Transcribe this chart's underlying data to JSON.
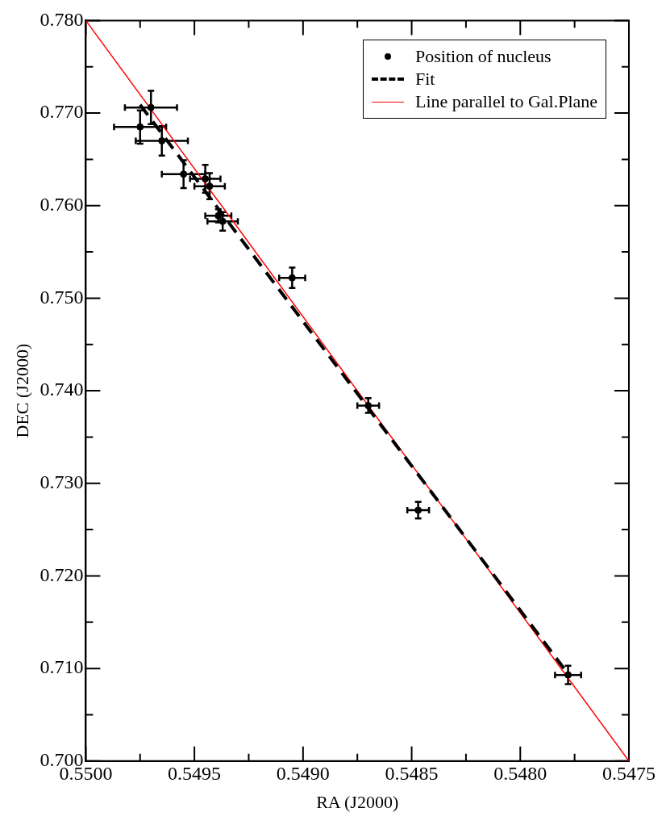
{
  "chart_data": {
    "type": "scatter",
    "xlabel": "RA (J2000)",
    "ylabel": "DEC (J2000)",
    "xlim": [
      0.55,
      0.5475
    ],
    "ylim": [
      0.7,
      0.78
    ],
    "xticks": [
      {
        "value": 0.55,
        "label": "0.5500"
      },
      {
        "value": 0.54975,
        "label": null
      },
      {
        "value": 0.5495,
        "label": "0.5495"
      },
      {
        "value": 0.54925,
        "label": null
      },
      {
        "value": 0.549,
        "label": "0.5490"
      },
      {
        "value": 0.54875,
        "label": null
      },
      {
        "value": 0.5485,
        "label": "0.5485"
      },
      {
        "value": 0.54825,
        "label": null
      },
      {
        "value": 0.548,
        "label": "0.5480"
      },
      {
        "value": 0.54775,
        "label": null
      },
      {
        "value": 0.5475,
        "label": "0.5475"
      }
    ],
    "yticks": [
      {
        "value": 0.7,
        "label": "0.700"
      },
      {
        "value": 0.705,
        "label": null
      },
      {
        "value": 0.71,
        "label": "0.710"
      },
      {
        "value": 0.715,
        "label": null
      },
      {
        "value": 0.72,
        "label": "0.720"
      },
      {
        "value": 0.725,
        "label": null
      },
      {
        "value": 0.73,
        "label": "0.730"
      },
      {
        "value": 0.735,
        "label": null
      },
      {
        "value": 0.74,
        "label": "0.740"
      },
      {
        "value": 0.745,
        "label": null
      },
      {
        "value": 0.75,
        "label": "0.750"
      },
      {
        "value": 0.755,
        "label": null
      },
      {
        "value": 0.76,
        "label": "0.760"
      },
      {
        "value": 0.765,
        "label": null
      },
      {
        "value": 0.77,
        "label": "0.770"
      },
      {
        "value": 0.775,
        "label": null
      },
      {
        "value": 0.78,
        "label": "0.780"
      }
    ],
    "legend": "top right",
    "series": [
      {
        "name": "Position of nucleus",
        "type": "scatter",
        "color": "#000000",
        "marker": "circle",
        "x": [
          0.5497,
          0.54975,
          0.54965,
          0.54955,
          0.54945,
          0.54943,
          0.54939,
          0.54937,
          0.54905,
          0.5487,
          0.54847,
          0.54778
        ],
        "values": [
          0.7706,
          0.7685,
          0.767,
          0.7634,
          0.7629,
          0.7621,
          0.7589,
          0.7583,
          0.7522,
          0.7384,
          0.7271,
          0.7093
        ],
        "errors": [
          0.0018,
          0.0018,
          0.0016,
          0.0015,
          0.0015,
          0.0014,
          0.0007,
          0.001,
          0.0011,
          0.0008,
          0.0009,
          0.001
        ],
        "xerrors": [
          0.00012,
          0.00012,
          0.00012,
          0.0001,
          7e-05,
          7e-05,
          6e-05,
          7e-05,
          6e-05,
          5e-05,
          5e-05,
          6e-05
        ]
      },
      {
        "name": "Fit",
        "type": "line",
        "color": "#000000",
        "line_style": "dashed",
        "marker": "none",
        "x": [
          0.54975,
          0.54777
        ],
        "values": [
          0.7709,
          0.7091
        ]
      },
      {
        "name": "Line parallel to Gal.Plane",
        "type": "line",
        "color": "#ff0000",
        "line_style": "solid",
        "marker": "none",
        "x": [
          0.55,
          0.5475
        ],
        "values": [
          0.78,
          0.7
        ]
      }
    ]
  }
}
